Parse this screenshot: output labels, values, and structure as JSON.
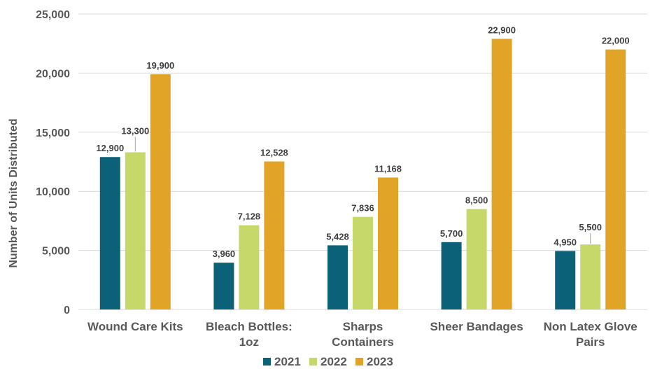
{
  "chart_data": {
    "type": "bar",
    "title": "",
    "xlabel": "",
    "ylabel": "Number of Units Distributed",
    "ylim": [
      0,
      25000
    ],
    "yticks": [
      0,
      5000,
      10000,
      15000,
      20000,
      25000
    ],
    "ytick_labels": [
      "0",
      "5,000",
      "10,000",
      "15,000",
      "20,000",
      "25,000"
    ],
    "grid": true,
    "legend_position": "bottom",
    "categories": [
      [
        "Wound Care Kits"
      ],
      [
        "Bleach Bottles:",
        "1oz"
      ],
      [
        "Sharps",
        "Containers"
      ],
      [
        "Sheer Bandages"
      ],
      [
        "Non Latex Glove",
        "Pairs"
      ]
    ],
    "series": [
      {
        "name": "2021",
        "color": "#0a6178",
        "values": [
          12900,
          3960,
          5428,
          5700,
          4950
        ],
        "labels": [
          "12,900",
          "3,960",
          "5,428",
          "5,700",
          "4,950"
        ]
      },
      {
        "name": "2022",
        "color": "#c6d86a",
        "values": [
          13300,
          7128,
          7836,
          8500,
          5500
        ],
        "labels": [
          "13,300",
          "7,128",
          "7,836",
          "8,500",
          "5,500"
        ]
      },
      {
        "name": "2023",
        "color": "#e2a426",
        "values": [
          19900,
          12528,
          11168,
          22900,
          22000
        ],
        "labels": [
          "19,900",
          "12,528",
          "11,168",
          "22,900",
          "22,000"
        ]
      }
    ]
  }
}
